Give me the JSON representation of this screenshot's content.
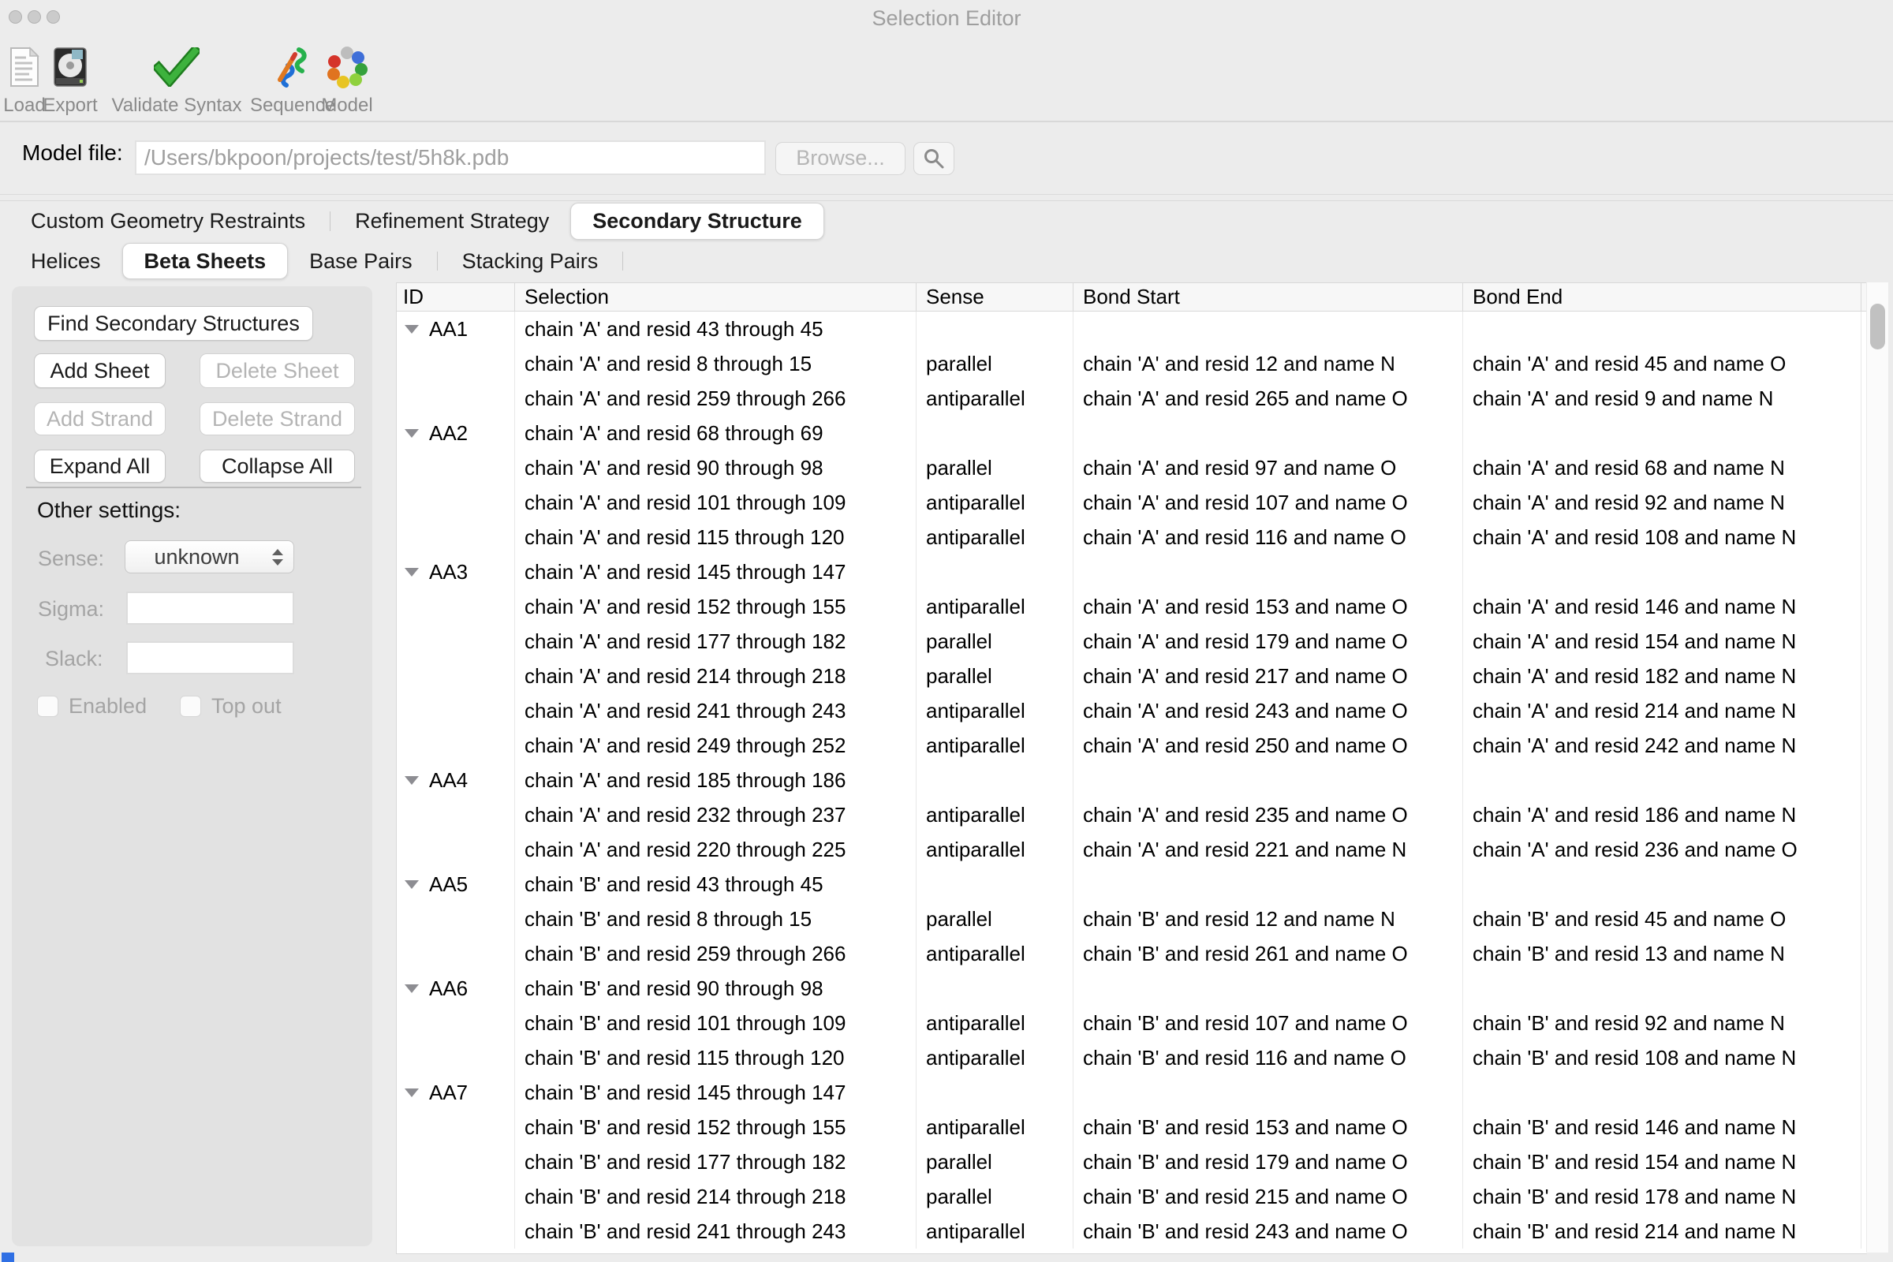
{
  "window": {
    "title": "Selection Editor"
  },
  "toolbar": {
    "items": [
      {
        "label": "Load",
        "icon": "load-document-icon"
      },
      {
        "label": "Export",
        "icon": "export-drive-icon"
      },
      {
        "label": "Validate Syntax",
        "icon": "green-check-icon"
      },
      {
        "label": "Sequence",
        "icon": "sequence-ribbon-icon"
      },
      {
        "label": "Model",
        "icon": "model-molecule-icon"
      }
    ]
  },
  "model_file": {
    "label": "Model file:",
    "value": "/Users/bkpoon/projects/test/5h8k.pdb",
    "browse_label": "Browse...",
    "search_icon": "magnifier-icon"
  },
  "tabs": {
    "items": [
      "Custom Geometry Restraints",
      "Refinement Strategy",
      "Secondary Structure"
    ],
    "selected": "Secondary Structure"
  },
  "subtabs": {
    "items": [
      "Helices",
      "Beta Sheets",
      "Base Pairs",
      "Stacking Pairs"
    ],
    "selected": "Beta Sheets"
  },
  "sidebar": {
    "buttons": [
      {
        "label": "Find Secondary Structures",
        "enabled": true
      },
      {
        "label": "Add Sheet",
        "enabled": true
      },
      {
        "label": "Delete Sheet",
        "enabled": false
      },
      {
        "label": "Add Strand",
        "enabled": false
      },
      {
        "label": "Delete Strand",
        "enabled": false
      },
      {
        "label": "Expand All",
        "enabled": true
      },
      {
        "label": "Collapse All",
        "enabled": true
      }
    ],
    "other_settings": {
      "heading": "Other settings:",
      "sense": {
        "label": "Sense:",
        "value": "unknown"
      },
      "sigma": {
        "label": "Sigma:",
        "value": ""
      },
      "slack": {
        "label": "Slack:",
        "value": ""
      },
      "checkboxes": [
        {
          "label": "Enabled",
          "checked": false
        },
        {
          "label": "Top out",
          "checked": false
        }
      ]
    }
  },
  "table": {
    "columns": [
      "ID",
      "Selection",
      "Sense",
      "Bond Start",
      "Bond End"
    ],
    "rows": [
      {
        "id": "AA1",
        "group": true,
        "selection": "chain 'A' and resid 43 through 45",
        "sense": "",
        "bond_start": "",
        "bond_end": ""
      },
      {
        "id": "",
        "group": false,
        "selection": "chain 'A' and resid 8 through 15",
        "sense": "parallel",
        "bond_start": "chain 'A' and resid 12 and name N",
        "bond_end": "chain 'A' and resid 45 and name O"
      },
      {
        "id": "",
        "group": false,
        "selection": "chain 'A' and resid 259 through 266",
        "sense": "antiparallel",
        "bond_start": "chain 'A' and resid 265 and name O",
        "bond_end": "chain 'A' and resid 9 and name N"
      },
      {
        "id": "AA2",
        "group": true,
        "selection": "chain 'A' and resid 68 through 69",
        "sense": "",
        "bond_start": "",
        "bond_end": ""
      },
      {
        "id": "",
        "group": false,
        "selection": "chain 'A' and resid 90 through 98",
        "sense": "parallel",
        "bond_start": "chain 'A' and resid 97 and name O",
        "bond_end": "chain 'A' and resid 68 and name N"
      },
      {
        "id": "",
        "group": false,
        "selection": "chain 'A' and resid 101 through 109",
        "sense": "antiparallel",
        "bond_start": "chain 'A' and resid 107 and name O",
        "bond_end": "chain 'A' and resid 92 and name N"
      },
      {
        "id": "",
        "group": false,
        "selection": "chain 'A' and resid 115 through 120",
        "sense": "antiparallel",
        "bond_start": "chain 'A' and resid 116 and name O",
        "bond_end": "chain 'A' and resid 108 and name N"
      },
      {
        "id": "AA3",
        "group": true,
        "selection": "chain 'A' and resid 145 through 147",
        "sense": "",
        "bond_start": "",
        "bond_end": ""
      },
      {
        "id": "",
        "group": false,
        "selection": "chain 'A' and resid 152 through 155",
        "sense": "antiparallel",
        "bond_start": "chain 'A' and resid 153 and name O",
        "bond_end": "chain 'A' and resid 146 and name N"
      },
      {
        "id": "",
        "group": false,
        "selection": "chain 'A' and resid 177 through 182",
        "sense": "parallel",
        "bond_start": "chain 'A' and resid 179 and name O",
        "bond_end": "chain 'A' and resid 154 and name N"
      },
      {
        "id": "",
        "group": false,
        "selection": "chain 'A' and resid 214 through 218",
        "sense": "parallel",
        "bond_start": "chain 'A' and resid 217 and name O",
        "bond_end": "chain 'A' and resid 182 and name N"
      },
      {
        "id": "",
        "group": false,
        "selection": "chain 'A' and resid 241 through 243",
        "sense": "antiparallel",
        "bond_start": "chain 'A' and resid 243 and name O",
        "bond_end": "chain 'A' and resid 214 and name N"
      },
      {
        "id": "",
        "group": false,
        "selection": "chain 'A' and resid 249 through 252",
        "sense": "antiparallel",
        "bond_start": "chain 'A' and resid 250 and name O",
        "bond_end": "chain 'A' and resid 242 and name N"
      },
      {
        "id": "AA4",
        "group": true,
        "selection": "chain 'A' and resid 185 through 186",
        "sense": "",
        "bond_start": "",
        "bond_end": ""
      },
      {
        "id": "",
        "group": false,
        "selection": "chain 'A' and resid 232 through 237",
        "sense": "antiparallel",
        "bond_start": "chain 'A' and resid 235 and name O",
        "bond_end": "chain 'A' and resid 186 and name N"
      },
      {
        "id": "",
        "group": false,
        "selection": "chain 'A' and resid 220 through 225",
        "sense": "antiparallel",
        "bond_start": "chain 'A' and resid 221 and name N",
        "bond_end": "chain 'A' and resid 236 and name O"
      },
      {
        "id": "AA5",
        "group": true,
        "selection": "chain 'B' and resid 43 through 45",
        "sense": "",
        "bond_start": "",
        "bond_end": ""
      },
      {
        "id": "",
        "group": false,
        "selection": "chain 'B' and resid 8 through 15",
        "sense": "parallel",
        "bond_start": "chain 'B' and resid 12 and name N",
        "bond_end": "chain 'B' and resid 45 and name O"
      },
      {
        "id": "",
        "group": false,
        "selection": "chain 'B' and resid 259 through 266",
        "sense": "antiparallel",
        "bond_start": "chain 'B' and resid 261 and name O",
        "bond_end": "chain 'B' and resid 13 and name N"
      },
      {
        "id": "AA6",
        "group": true,
        "selection": "chain 'B' and resid 90 through 98",
        "sense": "",
        "bond_start": "",
        "bond_end": ""
      },
      {
        "id": "",
        "group": false,
        "selection": "chain 'B' and resid 101 through 109",
        "sense": "antiparallel",
        "bond_start": "chain 'B' and resid 107 and name O",
        "bond_end": "chain 'B' and resid 92 and name N"
      },
      {
        "id": "",
        "group": false,
        "selection": "chain 'B' and resid 115 through 120",
        "sense": "antiparallel",
        "bond_start": "chain 'B' and resid 116 and name O",
        "bond_end": "chain 'B' and resid 108 and name N"
      },
      {
        "id": "AA7",
        "group": true,
        "selection": "chain 'B' and resid 145 through 147",
        "sense": "",
        "bond_start": "",
        "bond_end": ""
      },
      {
        "id": "",
        "group": false,
        "selection": "chain 'B' and resid 152 through 155",
        "sense": "antiparallel",
        "bond_start": "chain 'B' and resid 153 and name O",
        "bond_end": "chain 'B' and resid 146 and name N"
      },
      {
        "id": "",
        "group": false,
        "selection": "chain 'B' and resid 177 through 182",
        "sense": "parallel",
        "bond_start": "chain 'B' and resid 179 and name O",
        "bond_end": "chain 'B' and resid 154 and name N"
      },
      {
        "id": "",
        "group": false,
        "selection": "chain 'B' and resid 214 through 218",
        "sense": "parallel",
        "bond_start": "chain 'B' and resid 215 and name O",
        "bond_end": "chain 'B' and resid 178 and name N"
      },
      {
        "id": "",
        "group": false,
        "selection": "chain 'B' and resid 241 through 243",
        "sense": "antiparallel",
        "bond_start": "chain 'B' and resid 243 and name O",
        "bond_end": "chain 'B' and resid 214 and name N"
      }
    ]
  },
  "colors": {
    "validate_check_green": "#2fa52f",
    "selected_tab_bg": "#ffffff",
    "window_bg": "#ececec",
    "disabled_text": "#b4b4b4",
    "scrollbar_thumb": "#c1c1c1",
    "corner_accent_blue": "#2f6fe4"
  }
}
